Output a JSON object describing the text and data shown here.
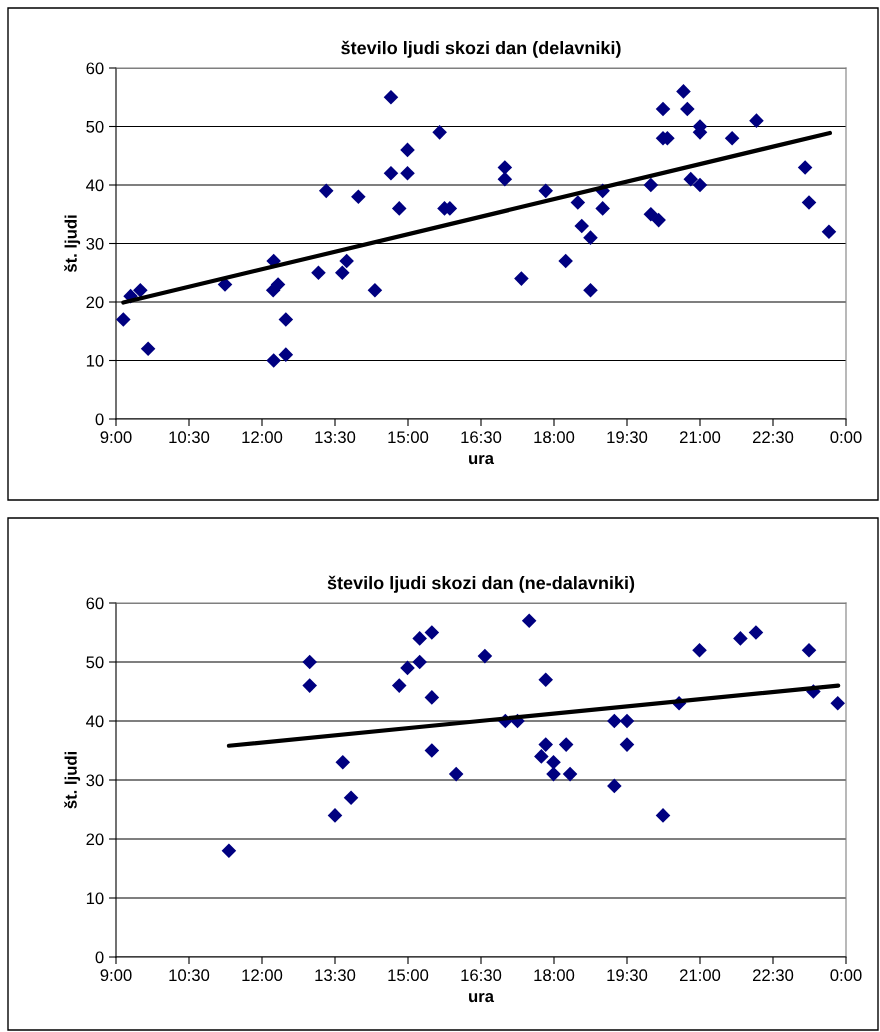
{
  "chart_data": [
    {
      "type": "scatter",
      "title": "število ljudi skozi dan (delavniki)",
      "xlabel": "ura",
      "ylabel": "št. ljudi",
      "xlim": [
        9,
        24
      ],
      "xticks": [
        {
          "value": 9,
          "label": "9:00"
        },
        {
          "value": 10.5,
          "label": "10:30"
        },
        {
          "value": 12,
          "label": "12:00"
        },
        {
          "value": 13.5,
          "label": "13:30"
        },
        {
          "value": 15,
          "label": "15:00"
        },
        {
          "value": 16.5,
          "label": "16:30"
        },
        {
          "value": 18,
          "label": "18:00"
        },
        {
          "value": 19.5,
          "label": "19:30"
        },
        {
          "value": 21,
          "label": "21:00"
        },
        {
          "value": 22.5,
          "label": "22:30"
        },
        {
          "value": 24,
          "label": "0:00"
        }
      ],
      "ylim": [
        0,
        60
      ],
      "yticks": [
        0,
        10,
        20,
        30,
        40,
        50,
        60
      ],
      "grid": "y",
      "legend": false,
      "series": [
        {
          "marker": "diamond",
          "color": "#000080",
          "x": [
            9.15,
            9.3,
            9.5,
            9.66,
            11.24,
            12.24,
            12.33,
            12.23,
            12.49,
            12.24,
            12.49,
            13.16,
            13.32,
            13.65,
            13.74,
            13.98,
            14.32,
            14.65,
            14.65,
            14.82,
            14.99,
            14.99,
            15.65,
            15.75,
            15.86,
            16.99,
            16.99,
            17.33,
            17.83,
            18.49,
            18.57,
            18.75,
            18.24,
            18.75,
            19.0,
            19.0,
            19.99,
            19.99,
            20.15,
            20.24,
            20.24,
            20.33,
            20.66,
            20.74,
            20.81,
            21.0,
            21.0,
            21.0,
            21.66,
            22.16,
            23.16,
            23.24,
            23.65
          ],
          "values": [
            17,
            21,
            22,
            12,
            23,
            27,
            23,
            22,
            17,
            10,
            11,
            25,
            39,
            25,
            27,
            38,
            22,
            55,
            42,
            36,
            46,
            42,
            49,
            36,
            36,
            43,
            41,
            24,
            39,
            37,
            33,
            31,
            27,
            22,
            39,
            36,
            40,
            35,
            34,
            53,
            48,
            48,
            56,
            53,
            41,
            40,
            50,
            49,
            48,
            51,
            43,
            37,
            32
          ]
        },
        {
          "type": "line",
          "color": "#000000",
          "x": [
            9.15,
            23.67
          ],
          "values": [
            19.9,
            48.9
          ]
        }
      ]
    },
    {
      "type": "scatter",
      "title": "število ljudi skozi dan (ne-dalavniki)",
      "xlabel": "ura",
      "ylabel": "št. ljudi",
      "xlim": [
        9,
        24
      ],
      "xticks": [
        {
          "value": 9,
          "label": "9:00"
        },
        {
          "value": 10.5,
          "label": "10:30"
        },
        {
          "value": 12,
          "label": "12:00"
        },
        {
          "value": 13.5,
          "label": "13:30"
        },
        {
          "value": 15,
          "label": "15:00"
        },
        {
          "value": 16.5,
          "label": "16:30"
        },
        {
          "value": 18,
          "label": "18:00"
        },
        {
          "value": 19.5,
          "label": "19:30"
        },
        {
          "value": 21,
          "label": "21:00"
        },
        {
          "value": 22.5,
          "label": "22:30"
        },
        {
          "value": 24,
          "label": "0:00"
        }
      ],
      "ylim": [
        0,
        60
      ],
      "yticks": [
        0,
        10,
        20,
        30,
        40,
        50,
        60
      ],
      "grid": "y",
      "legend": false,
      "series": [
        {
          "marker": "diamond",
          "color": "#000080",
          "x": [
            11.32,
            12.98,
            12.98,
            13.5,
            13.66,
            13.83,
            14.82,
            14.99,
            15.24,
            15.24,
            15.49,
            15.49,
            15.49,
            15.99,
            16.58,
            17.49,
            17.0,
            17.25,
            17.83,
            17.83,
            17.74,
            17.99,
            17.99,
            18.25,
            18.33,
            19.24,
            19.5,
            19.5,
            19.24,
            20.24,
            20.57,
            20.99,
            21.83,
            22.15,
            23.24,
            23.33,
            23.83
          ],
          "values": [
            18,
            50,
            46,
            24,
            33,
            27,
            46,
            49,
            50,
            54,
            55,
            44,
            35,
            31,
            51,
            57,
            40,
            40,
            47,
            36,
            34,
            33,
            31,
            36,
            31,
            40,
            40,
            36,
            29,
            24,
            43,
            52,
            54,
            55,
            52,
            45,
            43
          ]
        },
        {
          "type": "line",
          "color": "#000000",
          "x": [
            11.32,
            23.84
          ],
          "values": [
            35.8,
            46.0
          ]
        }
      ]
    }
  ]
}
